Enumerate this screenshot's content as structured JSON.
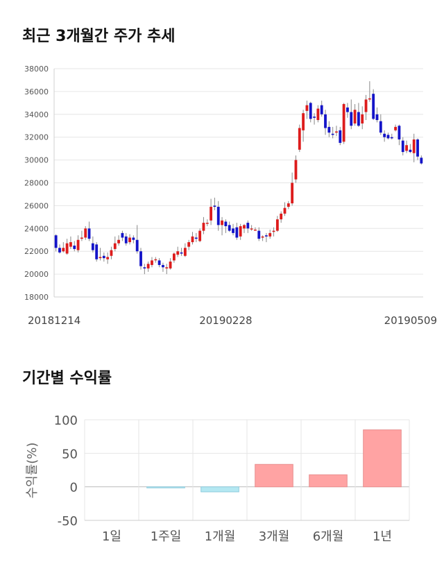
{
  "chart_data": [
    {
      "type": "candlestick",
      "title": "최근 3개월간 주가 추세",
      "ylim": [
        18000,
        38000
      ],
      "y_ticks": [
        18000,
        20000,
        22000,
        24000,
        26000,
        28000,
        30000,
        32000,
        34000,
        36000,
        38000
      ],
      "x_ticks": [
        {
          "label": "20181214",
          "index": 0
        },
        {
          "label": "20190228",
          "index": 46
        },
        {
          "label": "20190509",
          "index": 94
        }
      ],
      "grid": true,
      "colors": {
        "up": "#dd1c1c",
        "down": "#1414c8",
        "wick": "#888888"
      },
      "candles": [
        [
          23400,
          22300,
          23500,
          22000
        ],
        [
          22300,
          21900,
          22600,
          21800
        ],
        [
          22000,
          22300,
          22800,
          21900
        ],
        [
          21800,
          22700,
          23100,
          21700
        ],
        [
          22400,
          22800,
          23300,
          22200
        ],
        [
          22500,
          22200,
          22900,
          22000
        ],
        [
          22100,
          23000,
          23400,
          21900
        ],
        [
          23100,
          23200,
          23800,
          22900
        ],
        [
          23200,
          24000,
          24200,
          23000
        ],
        [
          24000,
          23100,
          24600,
          22900
        ],
        [
          22700,
          22100,
          23300,
          21900
        ],
        [
          22600,
          21300,
          22800,
          21100
        ],
        [
          21400,
          21500,
          22300,
          21200
        ],
        [
          21600,
          21400,
          21900,
          21100
        ],
        [
          21300,
          21500,
          21900,
          20900
        ],
        [
          21600,
          22100,
          22400,
          21300
        ],
        [
          22200,
          22700,
          23300,
          22000
        ],
        [
          22700,
          23000,
          23400,
          22500
        ],
        [
          23600,
          23200,
          23800,
          22900
        ],
        [
          23300,
          22700,
          23600,
          22500
        ],
        [
          22800,
          23200,
          23500,
          22600
        ],
        [
          23200,
          23000,
          23400,
          22700
        ],
        [
          23000,
          22000,
          24300,
          21800
        ],
        [
          22000,
          20700,
          22300,
          20400
        ],
        [
          20600,
          20500,
          20900,
          20000
        ],
        [
          20500,
          20900,
          21100,
          20200
        ],
        [
          20800,
          21200,
          21500,
          20600
        ],
        [
          21300,
          21300,
          21500,
          21000
        ],
        [
          21200,
          20800,
          21400,
          20600
        ],
        [
          20800,
          20600,
          21000,
          20200
        ],
        [
          20500,
          20600,
          20900,
          20000
        ],
        [
          20500,
          21100,
          21400,
          20400
        ],
        [
          21200,
          21800,
          21900,
          21000
        ],
        [
          21700,
          22000,
          22400,
          21500
        ],
        [
          21900,
          21800,
          22300,
          21600
        ],
        [
          21600,
          22300,
          22700,
          21500
        ],
        [
          22400,
          22800,
          23000,
          22100
        ],
        [
          22800,
          23300,
          23700,
          22600
        ],
        [
          23200,
          23100,
          23600,
          22800
        ],
        [
          22900,
          23800,
          24000,
          22800
        ],
        [
          23800,
          24500,
          25000,
          23500
        ],
        [
          24500,
          24500,
          24800,
          24200
        ],
        [
          24700,
          25900,
          26600,
          24300
        ],
        [
          26000,
          25900,
          26700,
          25600
        ],
        [
          25900,
          24300,
          26400,
          23800
        ],
        [
          24300,
          24700,
          25000,
          23400
        ],
        [
          24600,
          24200,
          24800,
          23600
        ],
        [
          24300,
          23800,
          24600,
          23700
        ],
        [
          24000,
          23600,
          24400,
          23400
        ],
        [
          24100,
          23200,
          24500,
          23000
        ],
        [
          23300,
          24200,
          24400,
          23000
        ],
        [
          24000,
          24300,
          24400,
          23600
        ],
        [
          24500,
          24000,
          24700,
          23600
        ],
        [
          24000,
          24000,
          24300,
          23800
        ],
        [
          23900,
          23900,
          24100,
          23800
        ],
        [
          23800,
          23100,
          24100,
          22900
        ],
        [
          23200,
          23300,
          23400,
          22900
        ],
        [
          23400,
          23300,
          23600,
          22800
        ],
        [
          23300,
          23600,
          23900,
          23100
        ],
        [
          23700,
          23800,
          24100,
          23300
        ],
        [
          23800,
          24800,
          25100,
          23700
        ],
        [
          24800,
          25300,
          25500,
          24500
        ],
        [
          25300,
          25800,
          26300,
          25100
        ],
        [
          25900,
          26200,
          26400,
          25700
        ],
        [
          26200,
          28000,
          28900,
          26000
        ],
        [
          28300,
          30000,
          30400,
          28000
        ],
        [
          30900,
          32800,
          33100,
          30700
        ],
        [
          32600,
          34100,
          34400,
          31600
        ],
        [
          34300,
          34800,
          35200,
          33600
        ],
        [
          35000,
          33600,
          35100,
          33300
        ],
        [
          33800,
          33700,
          34100,
          33100
        ],
        [
          33500,
          34500,
          34800,
          33300
        ],
        [
          34800,
          34000,
          35200,
          33800
        ],
        [
          34000,
          32800,
          34400,
          32200
        ],
        [
          32900,
          32400,
          33400,
          32000
        ],
        [
          32300,
          32200,
          32900,
          31900
        ],
        [
          32400,
          32500,
          33000,
          32100
        ],
        [
          32600,
          31500,
          32900,
          31300
        ],
        [
          31600,
          34900,
          35000,
          31400
        ],
        [
          34600,
          34200,
          35000,
          33700
        ],
        [
          34200,
          33000,
          35300,
          32700
        ],
        [
          33200,
          34400,
          34900,
          33000
        ],
        [
          34200,
          33000,
          35000,
          32900
        ],
        [
          33200,
          34000,
          34700,
          32700
        ],
        [
          34200,
          35300,
          35700,
          33500
        ],
        [
          35300,
          35400,
          36900,
          35100
        ],
        [
          35800,
          33600,
          36200,
          33500
        ],
        [
          34000,
          33500,
          34600,
          33300
        ],
        [
          33400,
          32400,
          34000,
          32200
        ],
        [
          32300,
          32000,
          32600,
          31600
        ],
        [
          32200,
          31900,
          32400,
          31800
        ],
        [
          32000,
          31900,
          32300,
          31800
        ],
        [
          32600,
          32900,
          33100,
          32500
        ],
        [
          33000,
          31800,
          33100,
          31300
        ],
        [
          31700,
          30700,
          32000,
          30400
        ],
        [
          30800,
          31300,
          31700,
          30600
        ],
        [
          30900,
          30700,
          31400,
          30600
        ],
        [
          30600,
          31800,
          32300,
          29800
        ],
        [
          31800,
          30300,
          31900,
          30000
        ],
        [
          30200,
          29700,
          30400,
          29600
        ]
      ]
    },
    {
      "type": "bar",
      "title": "기간별 수익률",
      "ylabel": "수익률(%)",
      "categories": [
        "1일",
        "1주일",
        "1개월",
        "3개월",
        "6개월",
        "1년"
      ],
      "values": [
        0,
        -1.5,
        -7.5,
        33.5,
        18.0,
        85.0
      ],
      "ylim": [
        -50,
        100
      ],
      "y_ticks": [
        -50,
        0,
        50,
        100
      ],
      "grid": true,
      "colors": {
        "positive": "#ffa3a3",
        "positive_stroke": "#e89090",
        "negative": "#b4e8f2",
        "negative_stroke": "#90ccdd"
      }
    }
  ]
}
